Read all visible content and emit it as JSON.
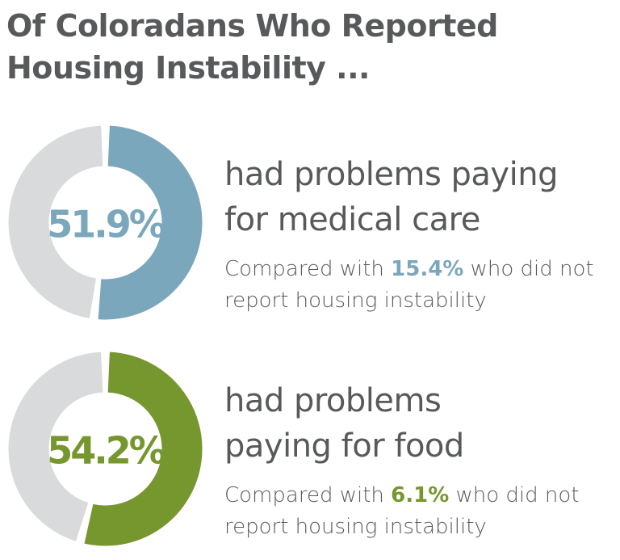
{
  "title": "Of Coloradans Who Reported Housing Instability ...",
  "chart_data": [
    {
      "type": "donut",
      "value": 51.9,
      "value_label": "51.9%",
      "color": "#7ba7bd",
      "track_color": "#d9dadb",
      "caption": [
        "had problems paying",
        "for medical care"
      ],
      "note": {
        "prefix": "Compared with",
        "value": "15.4%",
        "suffix": "who did not report housing instability"
      }
    },
    {
      "type": "donut",
      "value": 54.2,
      "value_label": "54.2%",
      "color": "#76962e",
      "track_color": "#d9dadb",
      "caption": [
        "had problems",
        "paying for food"
      ],
      "note": {
        "prefix": "Compared with",
        "value": "6.1%",
        "suffix": "who did not report housing instability"
      }
    }
  ]
}
